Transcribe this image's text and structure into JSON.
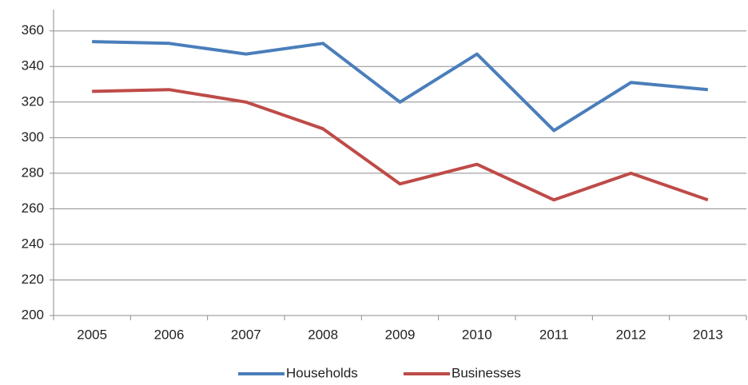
{
  "chart_data": {
    "type": "line",
    "categories": [
      "2005",
      "2006",
      "2007",
      "2008",
      "2009",
      "2010",
      "2011",
      "2012",
      "2013"
    ],
    "series": [
      {
        "name": "Households",
        "color": "#4a7ebb",
        "values": [
          354,
          353,
          347,
          353,
          320,
          347,
          304,
          331,
          327
        ]
      },
      {
        "name": "Businesses",
        "color": "#be4b48",
        "values": [
          326,
          327,
          320,
          305,
          274,
          285,
          265,
          280,
          265
        ]
      }
    ],
    "ylim": [
      200,
      372
    ],
    "yticks": [
      200,
      220,
      240,
      260,
      280,
      300,
      320,
      340,
      360
    ],
    "grid": true,
    "legend": "bottom"
  }
}
